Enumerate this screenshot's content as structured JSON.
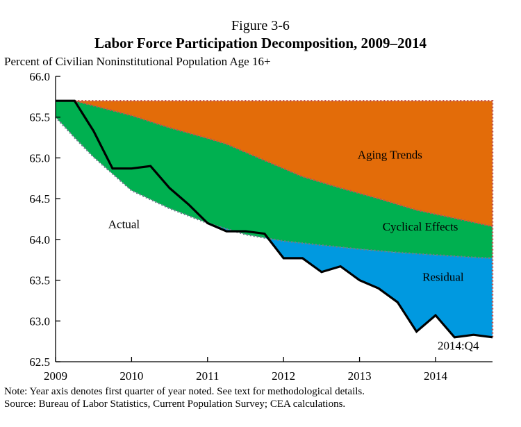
{
  "figure_label": "Figure 3-6",
  "chart_data": {
    "type": "area",
    "title": "Labor Force Participation Decomposition, 2009–2014",
    "ylabel": "Percent of Civilian Noninstitutional Population Age 16+",
    "xlabel": "",
    "ylim": [
      62.5,
      66.0
    ],
    "xlim": [
      2009,
      2014.75
    ],
    "yticks": [
      "66.0",
      "65.5",
      "65.0",
      "64.5",
      "64.0",
      "63.5",
      "63.0",
      "62.5"
    ],
    "ytick_values": [
      66.0,
      65.5,
      65.0,
      64.5,
      64.0,
      63.5,
      63.0,
      62.5
    ],
    "xticks": [
      "2009",
      "2010",
      "2011",
      "2012",
      "2013",
      "2014"
    ],
    "xtick_values": [
      2009,
      2010,
      2011,
      2012,
      2013,
      2014
    ],
    "grid": false,
    "legend": "none",
    "series": [
      {
        "name": "Actual",
        "color": "#000000",
        "x": [
          2009.0,
          2009.25,
          2009.5,
          2009.75,
          2010.0,
          2010.25,
          2010.5,
          2010.75,
          2011.0,
          2011.25,
          2011.5,
          2011.75,
          2012.0,
          2012.25,
          2012.5,
          2012.75,
          2013.0,
          2013.25,
          2013.5,
          2013.75,
          2014.0,
          2014.25,
          2014.5,
          2014.75
        ],
        "values": [
          65.7,
          65.7,
          65.33,
          64.87,
          64.87,
          64.9,
          64.63,
          64.43,
          64.2,
          64.1,
          64.1,
          64.07,
          63.77,
          63.77,
          63.6,
          63.67,
          63.5,
          63.4,
          63.23,
          62.87,
          63.07,
          62.8,
          62.83,
          62.8
        ]
      },
      {
        "name": "Aging Trends",
        "color": "#e36c09",
        "x": [
          2009.0,
          2009.25,
          2009.5,
          2010.0,
          2010.5,
          2011.0,
          2011.25,
          2011.75,
          2012.25,
          2012.75,
          2013.25,
          2013.75,
          2014.25,
          2014.75
        ],
        "values": [
          65.7,
          65.7,
          65.64,
          65.52,
          65.37,
          65.24,
          65.17,
          64.97,
          64.77,
          64.63,
          64.5,
          64.36,
          64.26,
          64.16
        ]
      },
      {
        "name": "Cyclical Effects",
        "color": "#00b050",
        "x": [
          2009.0,
          2009.25,
          2009.5,
          2010.0,
          2010.5,
          2011.0,
          2011.5,
          2012.0,
          2012.5,
          2013.0,
          2013.5,
          2014.0,
          2014.5,
          2014.75
        ],
        "values": [
          65.5,
          65.25,
          65.01,
          64.6,
          64.38,
          64.2,
          64.06,
          63.98,
          63.93,
          63.88,
          63.84,
          63.81,
          63.78,
          63.77
        ]
      },
      {
        "name": "Residual",
        "color": "#0099e0",
        "x": [],
        "values": []
      }
    ],
    "baseline": 65.7,
    "annotations": [
      {
        "text": "Aging Trends",
        "x": 2013.4,
        "y": 64.99
      },
      {
        "text": "Cyclical Effects",
        "x": 2013.8,
        "y": 64.11
      },
      {
        "text": "Residual",
        "x": 2014.1,
        "y": 63.49
      },
      {
        "text": "Actual",
        "x": 2009.9,
        "y": 64.14
      },
      {
        "text": "2014:Q4",
        "x": 2014.3,
        "y": 62.65
      }
    ]
  },
  "note_line1": "Note: Year axis denotes first quarter of year noted. See text for methodological details.",
  "note_line2": "Source: Bureau of Labor Statistics, Current Population Survey; CEA calculations."
}
